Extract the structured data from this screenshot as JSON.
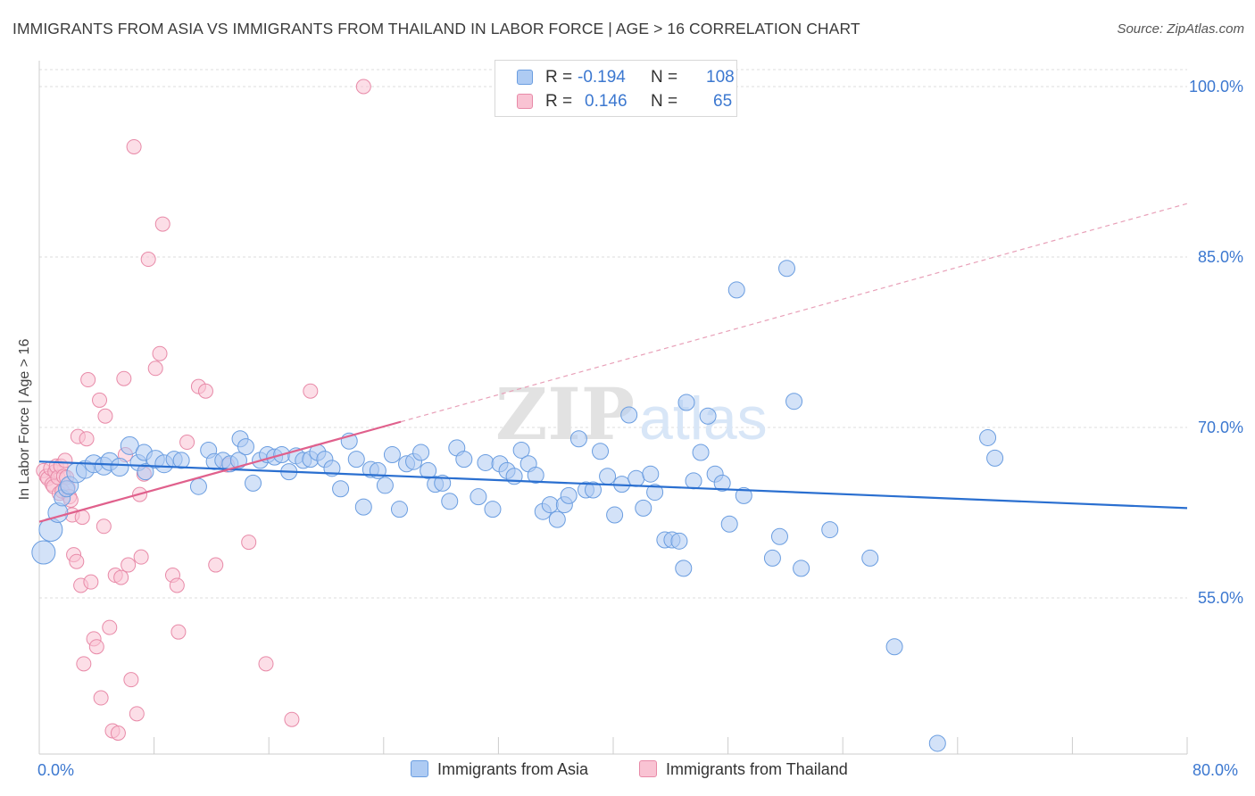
{
  "title": "IMMIGRANTS FROM ASIA VS IMMIGRANTS FROM THAILAND IN LABOR FORCE | AGE > 16 CORRELATION CHART",
  "source": "Source: ZipAtlas.com",
  "watermark": "ZIPatlas",
  "legend": {
    "rows": [
      {
        "r_label": "R =",
        "r_value": "-0.194",
        "n_label": "N =",
        "n_value": "108",
        "color": "#aecbf3",
        "border": "#6a9de0"
      },
      {
        "r_label": "R =",
        "r_value": "0.146",
        "n_label": "N =",
        "n_value": "65",
        "color": "#f9c3d3",
        "border": "#e88aa8"
      }
    ]
  },
  "bottom_legend": [
    {
      "label": "Immigrants from Asia",
      "color": "#aecbf3",
      "border": "#6a9de0"
    },
    {
      "label": "Immigrants from Thailand",
      "color": "#f9c3d3",
      "border": "#e88aa8"
    }
  ],
  "x_axis": {
    "min_label": "0.0%",
    "max_label": "80.0%"
  },
  "chart_data": {
    "type": "scatter",
    "title": "IMMIGRANTS FROM ASIA VS IMMIGRANTS FROM THAILAND IN LABOR FORCE | AGE > 16 CORRELATION CHART",
    "xlabel": "",
    "ylabel": "In Labor Force | Age > 16",
    "xlim": [
      0,
      80
    ],
    "ylim": [
      40,
      102
    ],
    "y_ticks": [
      55,
      70,
      85,
      100
    ],
    "y_tick_labels": [
      "55.0%",
      "70.0%",
      "85.0%",
      "100.0%"
    ],
    "x_tick_labels": [
      "0.0%",
      "80.0%"
    ],
    "grid": true,
    "series": [
      {
        "name": "Immigrants from Asia",
        "color": "#aecbf3",
        "edge": "#6a9de0",
        "trend": {
          "x": [
            0,
            80
          ],
          "y": [
            67.0,
            62.9
          ],
          "color": "#2a6fd0"
        },
        "points": [
          [
            0.3,
            59.0,
            13
          ],
          [
            0.8,
            61.0,
            13
          ],
          [
            1.3,
            62.5,
            11
          ],
          [
            1.6,
            63.8,
            9
          ],
          [
            1.9,
            64.6,
            9
          ],
          [
            2.1,
            64.9,
            10
          ],
          [
            2.6,
            66.0,
            11
          ],
          [
            3.2,
            66.3,
            10
          ],
          [
            3.8,
            66.8,
            10
          ],
          [
            4.5,
            66.6,
            10
          ],
          [
            4.9,
            67.0,
            10
          ],
          [
            5.6,
            66.5,
            10
          ],
          [
            6.3,
            68.4,
            10
          ],
          [
            6.9,
            66.9,
            9
          ],
          [
            7.4,
            66.1,
            9
          ],
          [
            7.3,
            67.8,
            9
          ],
          [
            8.1,
            67.2,
            10
          ],
          [
            8.7,
            66.8,
            10
          ],
          [
            9.4,
            67.2,
            9
          ],
          [
            9.9,
            67.1,
            9
          ],
          [
            11.1,
            64.8,
            9
          ],
          [
            11.8,
            68.0,
            9
          ],
          [
            12.2,
            67.0,
            9
          ],
          [
            12.8,
            67.1,
            9
          ],
          [
            13.3,
            66.8,
            9
          ],
          [
            13.9,
            67.1,
            9
          ],
          [
            14.0,
            69.0,
            9
          ],
          [
            14.4,
            68.3,
            9
          ],
          [
            14.9,
            65.1,
            9
          ],
          [
            15.4,
            67.1,
            9
          ],
          [
            15.9,
            67.6,
            9
          ],
          [
            16.4,
            67.4,
            9
          ],
          [
            16.9,
            67.6,
            9
          ],
          [
            17.4,
            66.1,
            9
          ],
          [
            17.9,
            67.5,
            9
          ],
          [
            18.4,
            67.1,
            9
          ],
          [
            18.9,
            67.2,
            9
          ],
          [
            19.4,
            67.8,
            9
          ],
          [
            19.9,
            67.2,
            9
          ],
          [
            20.4,
            66.4,
            9
          ],
          [
            21.0,
            64.6,
            9
          ],
          [
            21.6,
            68.8,
            9
          ],
          [
            22.1,
            67.2,
            9
          ],
          [
            22.6,
            63.0,
            9
          ],
          [
            23.1,
            66.3,
            9
          ],
          [
            23.6,
            66.2,
            9
          ],
          [
            24.1,
            64.9,
            9
          ],
          [
            24.6,
            67.6,
            9
          ],
          [
            25.1,
            62.8,
            9
          ],
          [
            25.6,
            66.8,
            9
          ],
          [
            26.1,
            67.0,
            9
          ],
          [
            26.6,
            67.8,
            9
          ],
          [
            27.1,
            66.2,
            9
          ],
          [
            27.6,
            65.0,
            9
          ],
          [
            28.1,
            65.1,
            9
          ],
          [
            28.6,
            63.5,
            9
          ],
          [
            29.1,
            68.2,
            9
          ],
          [
            29.6,
            67.2,
            9
          ],
          [
            30.6,
            63.9,
            9
          ],
          [
            31.1,
            66.9,
            9
          ],
          [
            31.6,
            62.8,
            9
          ],
          [
            32.1,
            66.8,
            9
          ],
          [
            32.6,
            66.2,
            9
          ],
          [
            33.1,
            65.7,
            9
          ],
          [
            33.6,
            68.0,
            9
          ],
          [
            34.1,
            66.8,
            9
          ],
          [
            34.6,
            65.8,
            9
          ],
          [
            35.1,
            62.6,
            9
          ],
          [
            35.6,
            63.2,
            9
          ],
          [
            36.1,
            61.9,
            9
          ],
          [
            36.6,
            63.2,
            9
          ],
          [
            36.9,
            64.0,
            9
          ],
          [
            37.6,
            69.0,
            9
          ],
          [
            38.1,
            64.5,
            9
          ],
          [
            38.6,
            64.5,
            9
          ],
          [
            39.1,
            67.9,
            9
          ],
          [
            39.6,
            65.7,
            9
          ],
          [
            40.1,
            62.3,
            9
          ],
          [
            40.6,
            65.0,
            9
          ],
          [
            41.1,
            71.1,
            9
          ],
          [
            41.6,
            65.5,
            9
          ],
          [
            42.1,
            62.9,
            9
          ],
          [
            42.6,
            65.9,
            9
          ],
          [
            42.9,
            64.3,
            9
          ],
          [
            43.6,
            60.1,
            9
          ],
          [
            44.1,
            60.1,
            9
          ],
          [
            44.6,
            60.0,
            9
          ],
          [
            44.9,
            57.6,
            9
          ],
          [
            45.1,
            72.2,
            9
          ],
          [
            45.6,
            65.3,
            9
          ],
          [
            46.1,
            67.8,
            9
          ],
          [
            46.6,
            71.0,
            9
          ],
          [
            47.1,
            65.9,
            9
          ],
          [
            47.6,
            65.1,
            9
          ],
          [
            48.1,
            61.5,
            9
          ],
          [
            48.6,
            82.1,
            9
          ],
          [
            49.1,
            64.0,
            9
          ],
          [
            51.1,
            58.5,
            9
          ],
          [
            51.6,
            60.4,
            9
          ],
          [
            52.1,
            84.0,
            9
          ],
          [
            52.6,
            72.3,
            9
          ],
          [
            53.1,
            57.6,
            9
          ],
          [
            55.1,
            61.0,
            9
          ],
          [
            57.9,
            58.5,
            9
          ],
          [
            59.6,
            50.7,
            9
          ],
          [
            62.6,
            42.2,
            9
          ],
          [
            66.1,
            69.1,
            9
          ],
          [
            66.6,
            67.3,
            9
          ]
        ]
      },
      {
        "name": "Immigrants from Thailand",
        "color": "#f9c3d3",
        "edge": "#e88aa8",
        "trend": {
          "x": [
            0,
            25.2
          ],
          "y": [
            61.7,
            70.5
          ],
          "color": "#e0608c"
        },
        "trend_dashed": {
          "x": [
            25.2,
            80
          ],
          "y": [
            70.5,
            89.7
          ],
          "color": "#e8a0b8"
        },
        "points": [
          [
            0.3,
            66.2,
            8
          ],
          [
            0.5,
            65.7,
            8
          ],
          [
            0.6,
            65.5,
            8
          ],
          [
            0.8,
            66.4,
            8
          ],
          [
            0.9,
            65.0,
            8
          ],
          [
            1.0,
            64.8,
            8
          ],
          [
            1.1,
            66.1,
            8
          ],
          [
            1.2,
            66.6,
            8
          ],
          [
            1.3,
            65.6,
            8
          ],
          [
            1.4,
            64.2,
            8
          ],
          [
            1.5,
            66.6,
            8
          ],
          [
            1.6,
            64.4,
            8
          ],
          [
            1.7,
            65.7,
            8
          ],
          [
            1.8,
            67.1,
            8
          ],
          [
            1.9,
            65.6,
            8
          ],
          [
            2.0,
            64.7,
            8
          ],
          [
            2.1,
            63.9,
            8
          ],
          [
            2.2,
            63.6,
            8
          ],
          [
            2.3,
            62.3,
            8
          ],
          [
            2.4,
            58.8,
            8
          ],
          [
            2.6,
            58.2,
            8
          ],
          [
            2.7,
            69.2,
            8
          ],
          [
            2.9,
            56.1,
            8
          ],
          [
            3.1,
            49.2,
            8
          ],
          [
            3.3,
            69.0,
            8
          ],
          [
            3.4,
            74.2,
            8
          ],
          [
            3.6,
            56.4,
            8
          ],
          [
            3.8,
            51.4,
            8
          ],
          [
            4.0,
            50.7,
            8
          ],
          [
            4.2,
            72.4,
            8
          ],
          [
            4.5,
            61.3,
            8
          ],
          [
            4.6,
            71.0,
            8
          ],
          [
            4.9,
            52.4,
            8
          ],
          [
            5.1,
            43.3,
            8
          ],
          [
            5.3,
            57.0,
            8
          ],
          [
            5.5,
            43.1,
            8
          ],
          [
            5.7,
            56.8,
            8
          ],
          [
            5.9,
            74.3,
            8
          ],
          [
            6.0,
            67.6,
            8
          ],
          [
            6.2,
            57.9,
            8
          ],
          [
            6.4,
            47.8,
            8
          ],
          [
            6.6,
            94.7,
            8
          ],
          [
            6.8,
            44.8,
            8
          ],
          [
            7.0,
            64.1,
            8
          ],
          [
            7.1,
            58.6,
            8
          ],
          [
            7.3,
            65.9,
            8
          ],
          [
            7.6,
            84.8,
            8
          ],
          [
            8.1,
            75.2,
            8
          ],
          [
            8.4,
            76.5,
            8
          ],
          [
            8.6,
            87.9,
            8
          ],
          [
            9.3,
            57.0,
            8
          ],
          [
            9.6,
            56.1,
            8
          ],
          [
            9.7,
            52.0,
            8
          ],
          [
            10.3,
            68.7,
            8
          ],
          [
            11.1,
            73.6,
            8
          ],
          [
            11.6,
            73.2,
            8
          ],
          [
            12.3,
            57.9,
            8
          ],
          [
            13.1,
            66.7,
            8
          ],
          [
            14.6,
            59.9,
            8
          ],
          [
            15.8,
            49.2,
            8
          ],
          [
            17.6,
            44.3,
            8
          ],
          [
            18.9,
            73.2,
            8
          ],
          [
            22.6,
            100.0,
            8
          ],
          [
            3.0,
            62.1,
            8
          ],
          [
            4.3,
            46.2,
            8
          ]
        ]
      }
    ]
  }
}
